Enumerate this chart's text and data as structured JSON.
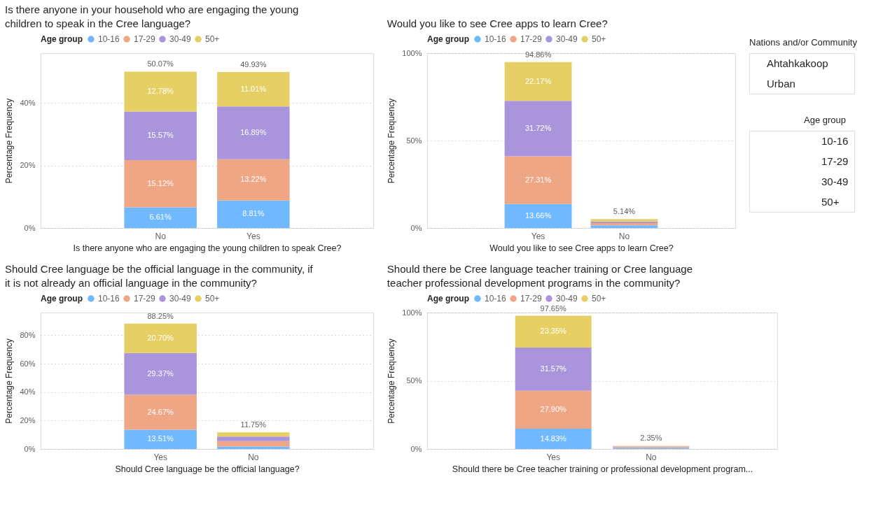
{
  "chart_data": [
    {
      "type": "bar",
      "stacked": true,
      "title": "Is there anyone in your household who are engaging the young children to speak in the Cree language?",
      "legend_title": "Age group",
      "legend": "top left",
      "xlabel": "Is there anyone who are engaging the young children to speak Cree?",
      "ylabel": "Percentage Frequency",
      "categories": [
        "No",
        "Yes"
      ],
      "series": [
        {
          "name": "10-16",
          "color": "#70b8ff",
          "values": [
            6.61,
            8.81
          ],
          "value_labels": [
            "6.61%",
            "8.81%"
          ]
        },
        {
          "name": "17-29",
          "color": "#eea685",
          "values": [
            15.12,
            13.22
          ],
          "value_labels": [
            "15.12%",
            "13.22%"
          ]
        },
        {
          "name": "30-49",
          "color": "#aa95dc",
          "values": [
            15.57,
            16.89
          ],
          "value_labels": [
            "15.57%",
            "16.89%"
          ]
        },
        {
          "name": "50+",
          "color": "#e6d066",
          "values": [
            12.78,
            11.01
          ],
          "value_labels": [
            "12.78%",
            "11.01%"
          ]
        }
      ],
      "totals": [
        "50.07%",
        "49.93%"
      ],
      "ylim": [
        0,
        56
      ],
      "yticks": [
        {
          "value": 0,
          "label": "0%"
        },
        {
          "value": 20,
          "label": "20%"
        },
        {
          "value": 40,
          "label": "40%"
        }
      ],
      "grid": "y"
    },
    {
      "type": "bar",
      "stacked": true,
      "title": "Would you like to see Cree apps to learn Cree?",
      "legend_title": "Age group",
      "legend": "top left",
      "xlabel": "Would you like to see Cree apps to learn Cree?",
      "ylabel": "Percentage Frequency",
      "categories": [
        "Yes",
        "No"
      ],
      "series": [
        {
          "name": "10-16",
          "color": "#70b8ff",
          "values": [
            13.66,
            1.5
          ],
          "value_labels": [
            "13.66%",
            null
          ]
        },
        {
          "name": "17-29",
          "color": "#eea685",
          "values": [
            27.31,
            1.3
          ],
          "value_labels": [
            "27.31%",
            null
          ]
        },
        {
          "name": "30-49",
          "color": "#aa95dc",
          "values": [
            31.72,
            0.94
          ],
          "value_labels": [
            "31.72%",
            null
          ]
        },
        {
          "name": "50+",
          "color": "#e6d066",
          "values": [
            22.17,
            1.4
          ],
          "value_labels": [
            "22.17%",
            null
          ]
        }
      ],
      "totals": [
        "94.86%",
        "5.14%"
      ],
      "ylim": [
        0,
        100
      ],
      "yticks": [
        {
          "value": 0,
          "label": "0%"
        },
        {
          "value": 50,
          "label": "50%"
        },
        {
          "value": 100,
          "label": "100%"
        }
      ],
      "grid": "y"
    },
    {
      "type": "other",
      "title": "Nations and/or Community",
      "categories": [
        "Ahtahkakoop",
        "Urban"
      ]
    },
    {
      "type": "other",
      "title": "Age group",
      "categories": [
        "10-16",
        "17-29",
        "30-49",
        "50+"
      ]
    },
    {
      "type": "bar",
      "stacked": true,
      "title": "Should Cree language be the official language in the community, if it is not already an official language in the community?",
      "legend_title": "Age group",
      "legend": "top left",
      "xlabel": "Should Cree language be the official language?",
      "ylabel": "Percentage Frequency",
      "categories": [
        "Yes",
        "No"
      ],
      "series": [
        {
          "name": "10-16",
          "color": "#70b8ff",
          "values": [
            13.51,
            1.7
          ],
          "value_labels": [
            "13.51%",
            null
          ]
        },
        {
          "name": "17-29",
          "color": "#eea685",
          "values": [
            24.67,
            3.8
          ],
          "value_labels": [
            "24.67%",
            null
          ]
        },
        {
          "name": "30-49",
          "color": "#aa95dc",
          "values": [
            29.37,
            3.2
          ],
          "value_labels": [
            "29.37%",
            null
          ]
        },
        {
          "name": "50+",
          "color": "#e6d066",
          "values": [
            20.7,
            3.05
          ],
          "value_labels": [
            "20.70%",
            null
          ]
        }
      ],
      "totals": [
        "88.25%",
        "11.75%"
      ],
      "ylim": [
        0,
        96
      ],
      "yticks": [
        {
          "value": 0,
          "label": "0%"
        },
        {
          "value": 20,
          "label": "20%"
        },
        {
          "value": 40,
          "label": "40%"
        },
        {
          "value": 60,
          "label": "60%"
        },
        {
          "value": 80,
          "label": "80%"
        }
      ],
      "grid": "y"
    },
    {
      "type": "bar",
      "stacked": true,
      "title": "Should there be Cree language teacher training or Cree language teacher professional development programs in the community?",
      "legend_title": "Age group",
      "legend": "top left",
      "xlabel": "Should there be Cree teacher training or professional development program...",
      "ylabel": "Percentage Frequency",
      "categories": [
        "Yes",
        "No"
      ],
      "series": [
        {
          "name": "10-16",
          "color": "#70b8ff",
          "values": [
            14.83,
            0.6
          ],
          "value_labels": [
            "14.83%",
            null
          ]
        },
        {
          "name": "17-29",
          "color": "#eea685",
          "values": [
            27.9,
            0.6
          ],
          "value_labels": [
            "27.90%",
            null
          ]
        },
        {
          "name": "30-49",
          "color": "#aa95dc",
          "values": [
            31.57,
            0.6
          ],
          "value_labels": [
            "31.57%",
            null
          ]
        },
        {
          "name": "50+",
          "color": "#e6d066",
          "values": [
            23.35,
            0.55
          ],
          "value_labels": [
            "23.35%",
            null
          ]
        }
      ],
      "totals": [
        "97.65%",
        "2.35%"
      ],
      "ylim": [
        0,
        100
      ],
      "yticks": [
        {
          "value": 0,
          "label": "0%"
        },
        {
          "value": 50,
          "label": "50%"
        },
        {
          "value": 100,
          "label": "100%"
        }
      ],
      "grid": "y"
    }
  ]
}
